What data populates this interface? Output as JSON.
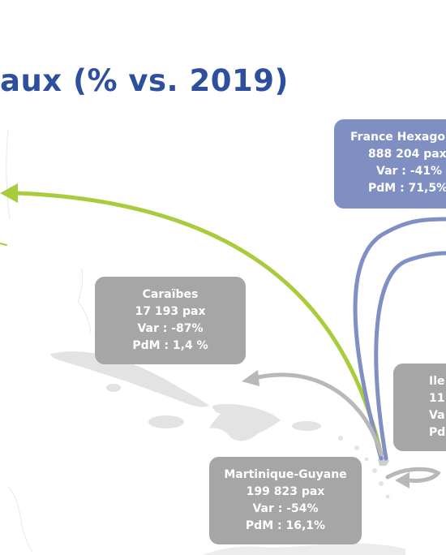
{
  "title": "aux (% vs. 2019)",
  "colors": {
    "title": "#2d4f9e",
    "box_grey": "#a6a6a6",
    "box_blue": "#7f8fc2",
    "arrow_green": "#a8cc3c",
    "arrow_blue": "#8090c4",
    "arrow_grey": "#b8b8b8",
    "land": "#e3e3e3"
  },
  "routes": {
    "caraibes": {
      "name": "Caraïbes",
      "pax": "17 193 pax",
      "var": "Var : -87%",
      "pdm": "PdM : 1,4 %"
    },
    "martinique_guyane": {
      "name": "Martinique-Guyane",
      "pax": "199 823 pax",
      "var": "Var : -54%",
      "pdm": "PdM : 16,1%"
    },
    "france_hexagone": {
      "name": "France Hexagone",
      "pax": "888 204 pax",
      "var": "Var : -41%",
      "pdm": "PdM : 71,5%"
    },
    "iles": {
      "name": "Ile",
      "pax": "11",
      "var": "Va",
      "pdm": "Pd"
    }
  }
}
